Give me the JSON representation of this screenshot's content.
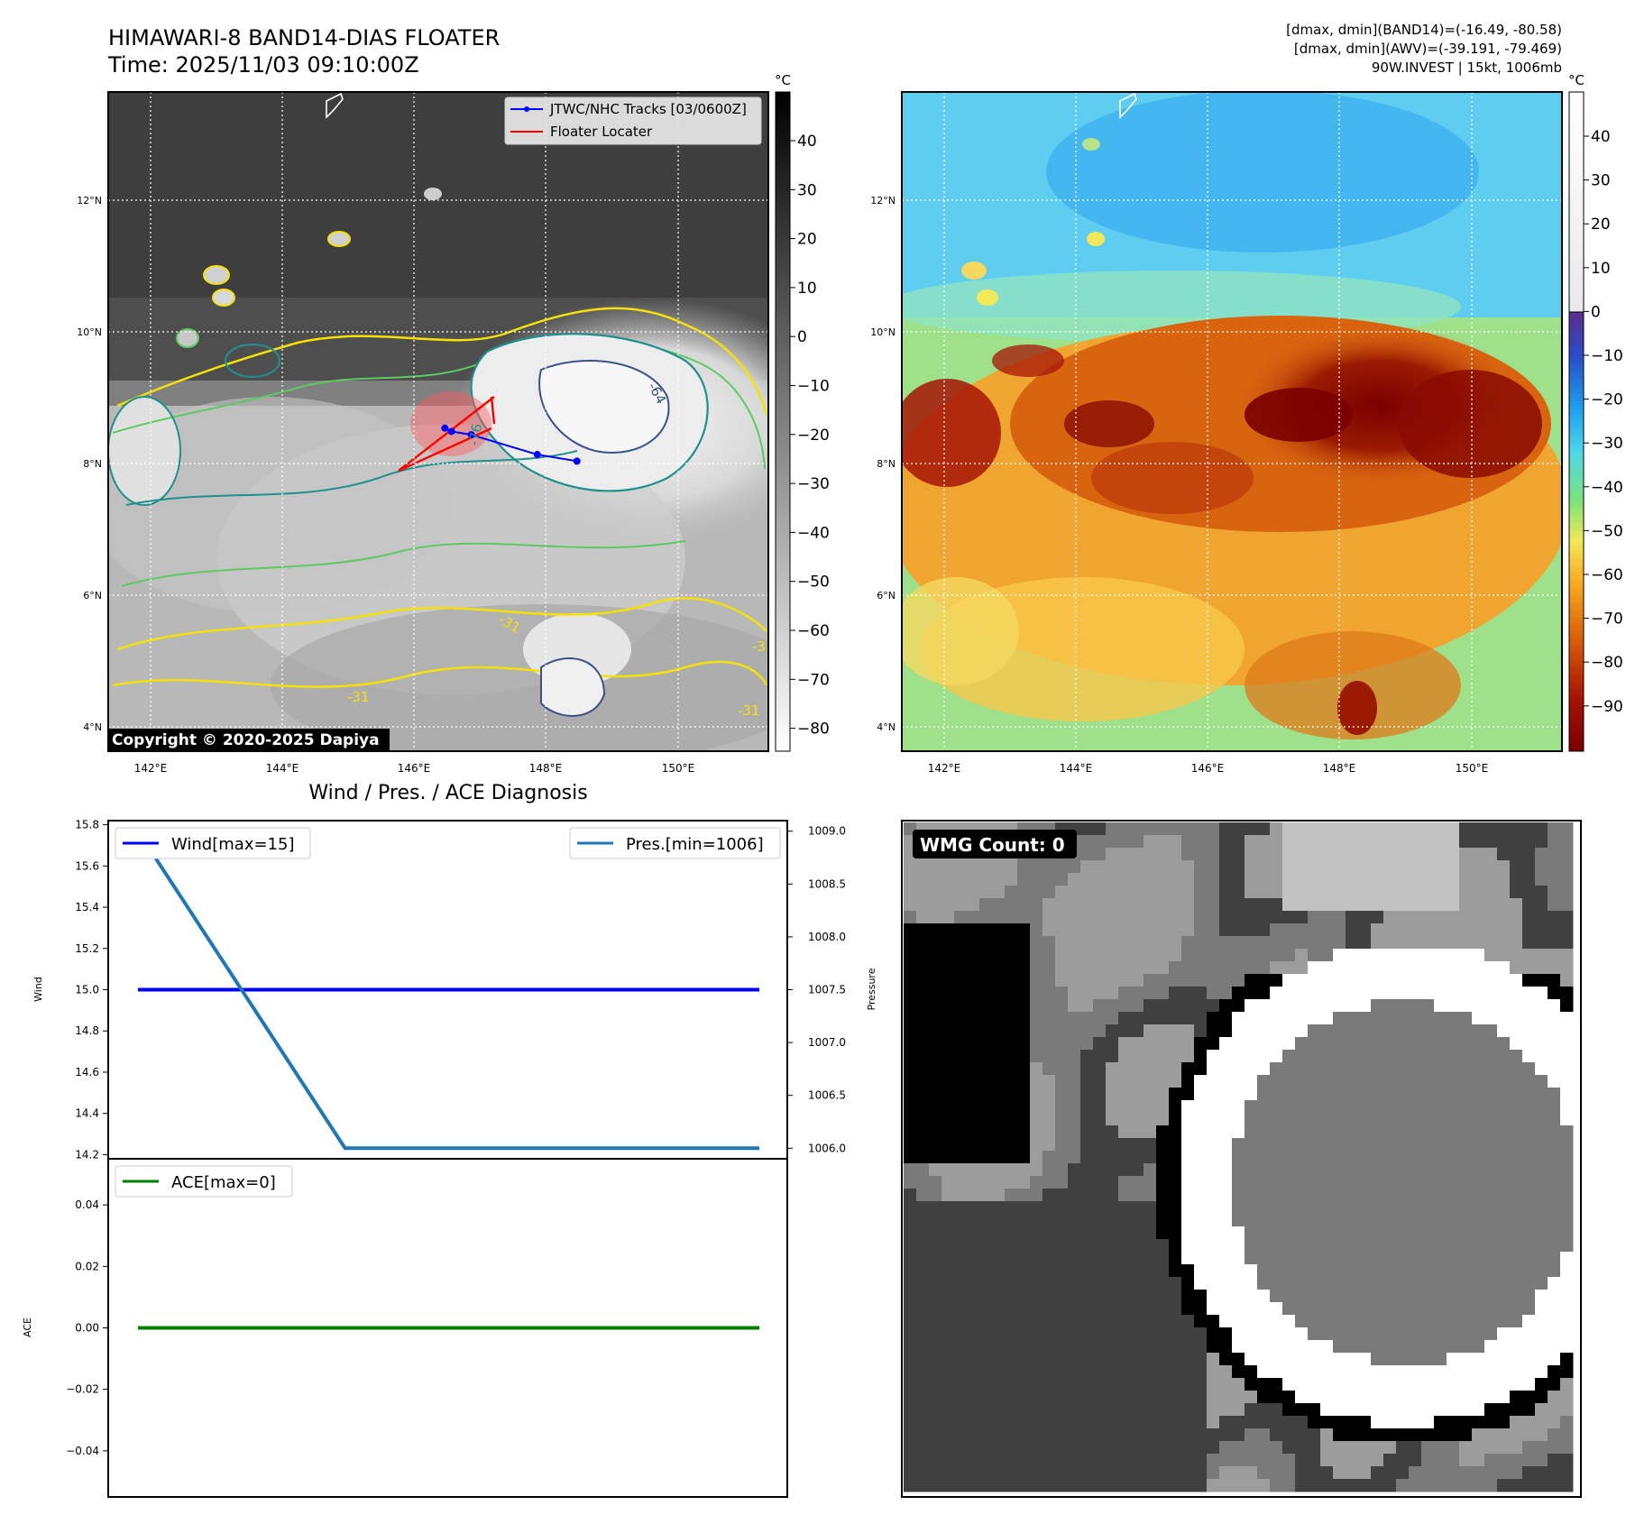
{
  "header": {
    "title_line1": "HIMAWARI-8 BAND14-DIAS FLOATER",
    "title_line2": "Time: 2025/11/03 09:10:00Z",
    "info_line1": "[dmax, dmin](BAND14)=(-16.49, -80.58)",
    "info_line2": "[dmax, dmin](AWV)=(-39.191, -79.469)",
    "info_line3": "90W.INVEST | 15kt, 1006mb"
  },
  "maps": {
    "lat_ticks": [
      "12°N",
      "10°N",
      "8°N",
      "6°N",
      "4°N"
    ],
    "lon_ticks": [
      "142°E",
      "144°E",
      "146°E",
      "148°E",
      "150°E"
    ],
    "contour_labels": [
      "-64",
      "-76",
      "-31",
      "-31",
      "-31",
      "-31"
    ],
    "legend": {
      "track": "JTWC/NHC Tracks [03/0600Z]",
      "floater": "Floater Locater"
    },
    "copyright": "Copyright © 2020-2025 Dapiya",
    "colorbar_unit": "°C",
    "colorbar_gray_ticks": [
      "40",
      "30",
      "20",
      "10",
      "0",
      "−10",
      "−20",
      "−30",
      "−40",
      "−50",
      "−60",
      "−70",
      "−80"
    ],
    "colorbar_color_ticks": [
      "40",
      "30",
      "20",
      "10",
      "0",
      "−10",
      "−20",
      "−30",
      "−40",
      "−50",
      "−60",
      "−70",
      "−80",
      "−90"
    ],
    "colors": {
      "track": "#0000ff",
      "floater": "#ff0000",
      "contour_yellow": "#f5e10a",
      "contour_green": "#5ec962",
      "contour_teal": "#21908d",
      "contour_blue": "#3b528b"
    }
  },
  "diagnosis": {
    "title": "Wind / Pres. / ACE Diagnosis",
    "wind_ylabel": "Wind",
    "pres_ylabel": "Pressure",
    "ace_ylabel": "ACE",
    "wind_legend": "Wind[max=15]",
    "pres_legend": "Pres.[min=1006]",
    "ace_legend": "ACE[max=0]",
    "wind_ticks": [
      "15.8",
      "15.6",
      "15.4",
      "15.2",
      "15.0",
      "14.8",
      "14.6",
      "14.4",
      "14.2"
    ],
    "pres_ticks": [
      "1009.0",
      "1008.5",
      "1008.0",
      "1007.5",
      "1007.0",
      "1006.5",
      "1006.0"
    ],
    "ace_ticks": [
      "0.04",
      "0.02",
      "0.00",
      "−0.02",
      "−0.04"
    ]
  },
  "wmg": {
    "label": "WMG Count: 0"
  },
  "chart_data": [
    {
      "type": "line",
      "title": "Wind / Pres. / ACE Diagnosis",
      "x": [
        0,
        1,
        2,
        3
      ],
      "series": [
        {
          "name": "Wind[max=15]",
          "values": [
            15,
            15,
            15,
            15
          ],
          "color": "#0000ff",
          "axis": "left"
        },
        {
          "name": "Pres.[min=1006]",
          "values": [
            1009,
            1006,
            1006,
            1006
          ],
          "color": "#1f77b4",
          "axis": "right"
        }
      ],
      "ylabel": "Wind",
      "ylim": [
        14.18,
        15.82
      ],
      "y2label": "Pressure",
      "y2lim": [
        1005.9,
        1009.1
      ],
      "grid": false,
      "legend": "top-left / top-right"
    },
    {
      "type": "line",
      "x": [
        0,
        1,
        2,
        3
      ],
      "series": [
        {
          "name": "ACE[max=0]",
          "values": [
            0,
            0,
            0,
            0
          ],
          "color": "#008000"
        }
      ],
      "ylabel": "ACE",
      "ylim": [
        -0.055,
        0.055
      ],
      "grid": false,
      "legend": "top-left"
    },
    {
      "type": "line",
      "title": "JTWC/NHC Tracks [03/0600Z]",
      "x_label_unit": "°E",
      "lon": [
        148.5,
        147.9,
        146.9,
        146.6,
        146.5
      ],
      "lat": [
        8.1,
        8.2,
        8.5,
        8.55,
        8.6
      ],
      "xlim": [
        141.4,
        151.4
      ],
      "ylim": [
        3.7,
        13.7
      ]
    }
  ]
}
